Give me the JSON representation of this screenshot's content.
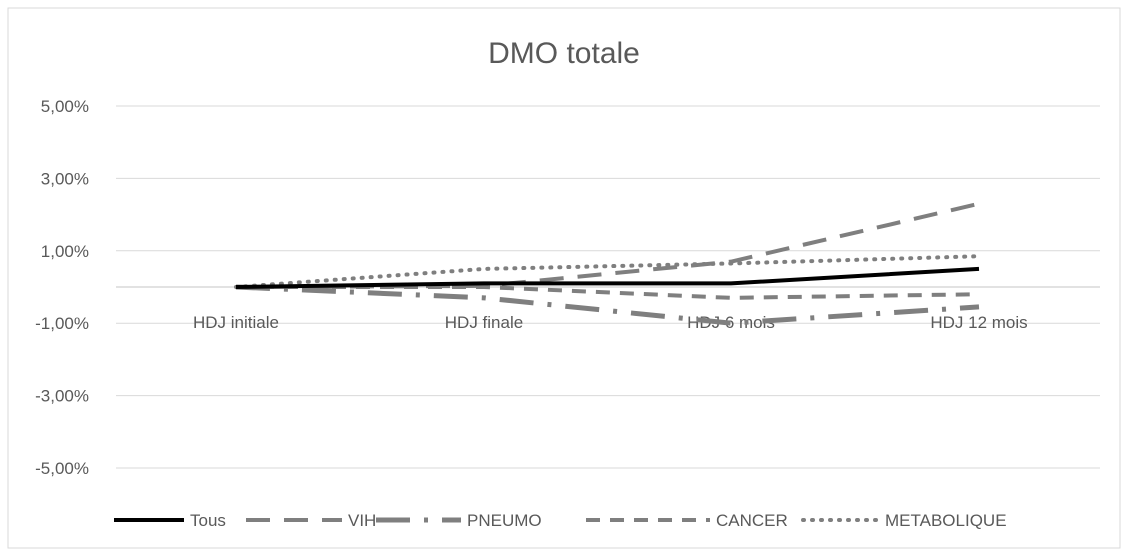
{
  "chart_data": {
    "type": "line",
    "title": "DMO totale",
    "xlabel": "",
    "ylabel": "",
    "categories": [
      "HDJ initiale",
      "HDJ finale",
      "HDJ 6 mois",
      "HDJ 12 mois"
    ],
    "ylim": [
      -0.05,
      0.05
    ],
    "yticks": [
      0.05,
      0.03,
      0.01,
      -0.01,
      -0.03,
      -0.05
    ],
    "ytick_labels": [
      "5,00%",
      "3,00%",
      "1,00%",
      "-1,00%",
      "-3,00%",
      "-5,00%"
    ],
    "grid": true,
    "legend_position": "bottom",
    "series": [
      {
        "name": "Tous",
        "values": [
          0,
          0.001,
          0.001,
          0.005
        ],
        "color": "#000000",
        "dash": "solid"
      },
      {
        "name": "VIH",
        "values": [
          0,
          0.0003,
          0.007,
          0.023
        ],
        "color": "#7f7f7f",
        "dash": "long-dash"
      },
      {
        "name": "PNEUMO",
        "values": [
          0,
          -0.003,
          -0.01,
          -0.0055
        ],
        "color": "#7f7f7f",
        "dash": "long-dash-dot"
      },
      {
        "name": "CANCER",
        "values": [
          0,
          0,
          -0.003,
          -0.002
        ],
        "color": "#7f7f7f",
        "dash": "dash"
      },
      {
        "name": "METABOLIQUE",
        "values": [
          0,
          0.005,
          0.0065,
          0.0085
        ],
        "color": "#7f7f7f",
        "dash": "dot"
      }
    ]
  }
}
